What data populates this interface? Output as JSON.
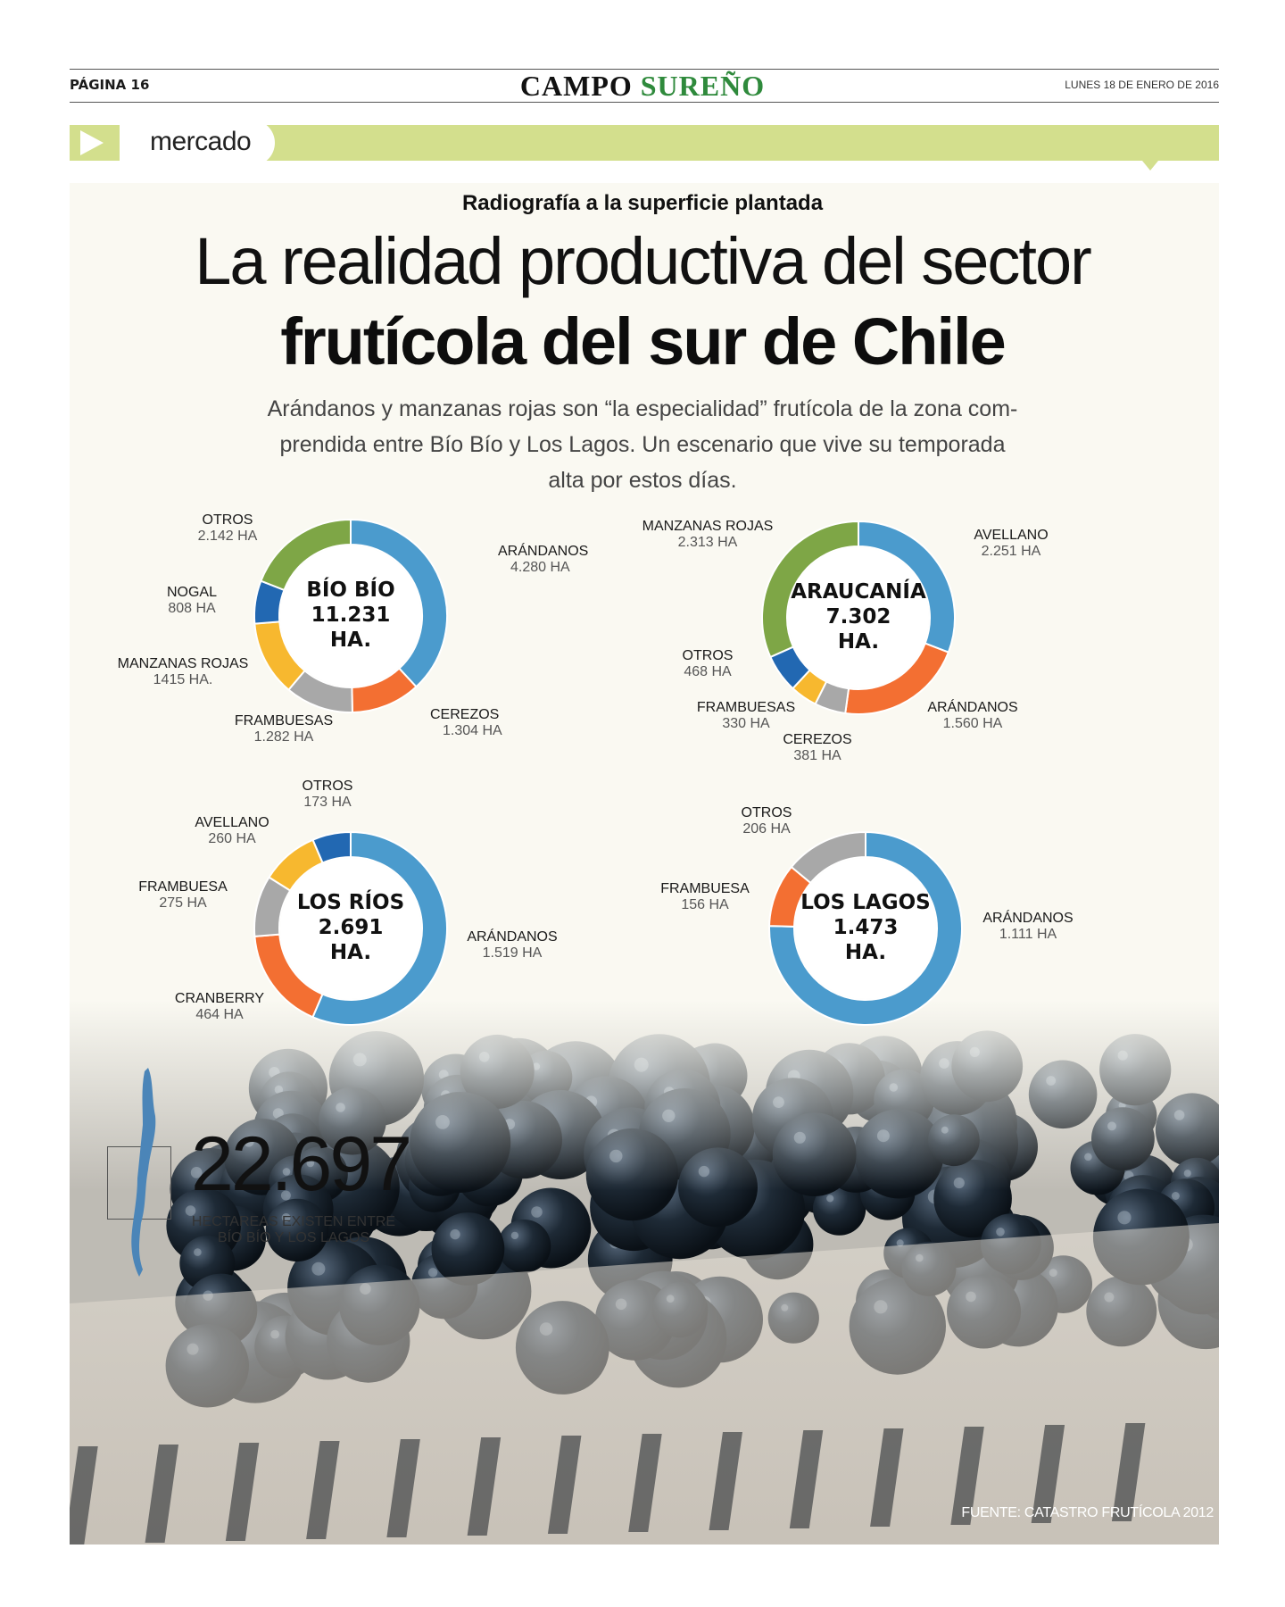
{
  "header": {
    "page": "PÁGINA 16",
    "brand_a": "CAMPO",
    "brand_b": "SUREÑO",
    "date": "LUNES 18 DE ENERO DE 2016",
    "section": "mercado"
  },
  "article": {
    "kicker": "Radiografía a la superficie plantada",
    "title_line1": "La realidad productiva del sector",
    "title_line2": "frutícola del sur de Chile",
    "deck": "Arándanos y manzanas rojas son “la especialidad” frutícola de la zona com-prendida entre Bío Bío y Los Lagos. Un escenario que vive su temporada alta por estos días."
  },
  "total": {
    "value": "22.697",
    "caption": "HECTAREAS EXISTEN ENTRE BÍO BÍO Y LOS LAGOS"
  },
  "source": "FUENTE: CATASTRO FRUTÍCOLA 2012",
  "colors": {
    "blue": "#4b9bcd",
    "orange": "#f36f32",
    "gray": "#a8a8a8",
    "yellow": "#f7b82f",
    "darkblue": "#2268b2",
    "green": "#7ea646",
    "band": "#d3df8d",
    "brand_green": "#2f8a3c"
  },
  "chart_data": [
    {
      "type": "pie",
      "center_lines": [
        "BÍO BÍO",
        "11.231",
        "HA."
      ],
      "slices": [
        {
          "label": "ARÁNDANOS",
          "value_text": "4.280 HA",
          "value": 4280,
          "color": "#4b9bcd"
        },
        {
          "label": "CEREZOS",
          "value_text": "1.304 HA",
          "value": 1304,
          "color": "#f36f32"
        },
        {
          "label": "FRAMBUESAS",
          "value_text": "1.282 HA",
          "value": 1282,
          "color": "#a8a8a8"
        },
        {
          "label": "MANZANAS ROJAS",
          "value_text": "1415 HA.",
          "value": 1415,
          "color": "#f7b82f"
        },
        {
          "label": "NOGAL",
          "value_text": "808 HA",
          "value": 808,
          "color": "#2268b2"
        },
        {
          "label": "OTROS",
          "value_text": "2.142 HA",
          "value": 2142,
          "color": "#7ea646"
        }
      ]
    },
    {
      "type": "pie",
      "center_lines": [
        "ARAUCANÍA",
        "7.302",
        "HA."
      ],
      "slices": [
        {
          "label": "AVELLANO",
          "value_text": "2.251 HA",
          "value": 2251,
          "color": "#4b9bcd"
        },
        {
          "label": "ARÁNDANOS",
          "value_text": "1.560 HA",
          "value": 1560,
          "color": "#f36f32"
        },
        {
          "label": "CEREZOS",
          "value_text": "381 HA",
          "value": 381,
          "color": "#a8a8a8"
        },
        {
          "label": "FRAMBUESAS",
          "value_text": "330 HA",
          "value": 330,
          "color": "#f7b82f"
        },
        {
          "label": "OTROS",
          "value_text": "468 HA",
          "value": 468,
          "color": "#2268b2"
        },
        {
          "label": "MANZANAS ROJAS",
          "value_text": "2.313 HA",
          "value": 2313,
          "color": "#7ea646"
        }
      ]
    },
    {
      "type": "pie",
      "center_lines": [
        "LOS RÍOS",
        "2.691",
        "HA."
      ],
      "slices": [
        {
          "label": "ARÁNDANOS",
          "value_text": "1.519 HA",
          "value": 1519,
          "color": "#4b9bcd"
        },
        {
          "label": "CRANBERRY",
          "value_text": "464 HA",
          "value": 464,
          "color": "#f36f32"
        },
        {
          "label": "FRAMBUESA",
          "value_text": "275 HA",
          "value": 275,
          "color": "#a8a8a8"
        },
        {
          "label": "AVELLANO",
          "value_text": "260 HA",
          "value": 260,
          "color": "#f7b82f"
        },
        {
          "label": "OTROS",
          "value_text": "173 HA",
          "value": 173,
          "color": "#2268b2"
        }
      ]
    },
    {
      "type": "pie",
      "center_lines": [
        "LOS LAGOS",
        "1.473",
        "HA."
      ],
      "slices": [
        {
          "label": "ARÁNDANOS",
          "value_text": "1.111 HA",
          "value": 1111,
          "color": "#4b9bcd"
        },
        {
          "label": "FRAMBUESA",
          "value_text": "156 HA",
          "value": 156,
          "color": "#f36f32"
        },
        {
          "label": "OTROS",
          "value_text": "206 HA",
          "value": 206,
          "color": "#a8a8a8"
        }
      ]
    }
  ]
}
